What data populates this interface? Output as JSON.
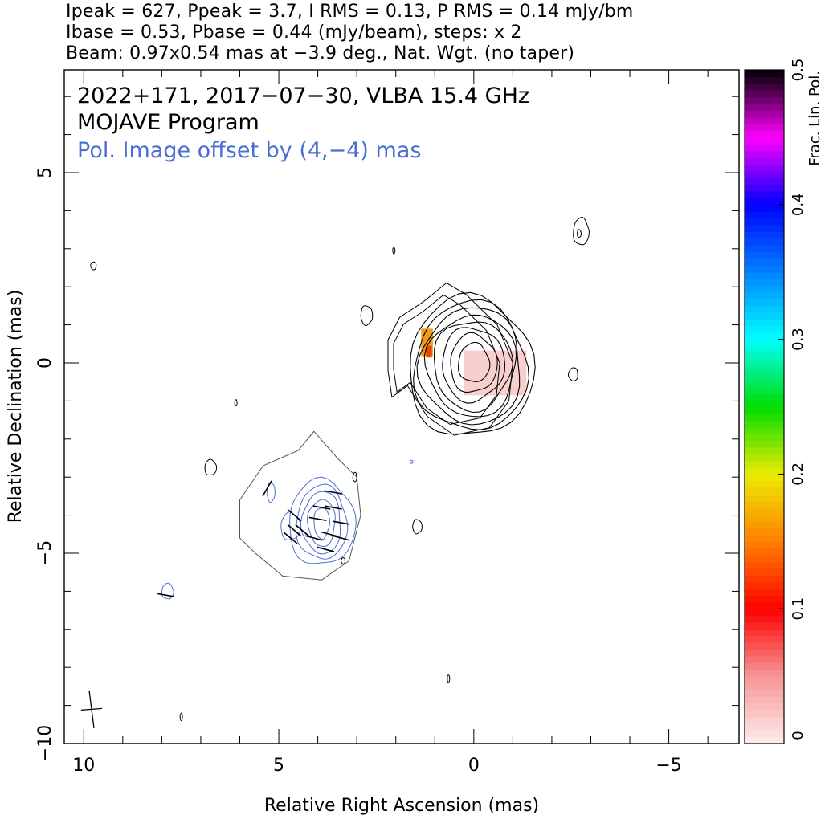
{
  "header": {
    "line1": "Ipeak = 627, Ppeak = 3.7, I RMS = 0.13, P RMS = 0.14 mJy/bm",
    "line2": "Ibase = 0.53, Pbase = 0.44 (mJy/beam), steps: x 2",
    "line3": "Beam: 0.97x0.54 mas at −3.9 deg., Nat. Wgt. (no taper)"
  },
  "chart_data": {
    "type": "contour",
    "title_lines": [
      "2022+171, 2017−07−30, VLBA 15.4 GHz",
      "MOJAVE Program"
    ],
    "annotation": "Pol. Image offset by (4,−4) mas",
    "xlabel": "Relative Right Ascension (mas)",
    "ylabel": "Relative Declination (mas)",
    "xlim": [
      10.5,
      -6.8
    ],
    "ylim": [
      -10,
      7.7
    ],
    "x_ticks": [
      10,
      5,
      0,
      -5
    ],
    "x_tick_labels": [
      "10",
      "5",
      "0",
      "−5"
    ],
    "y_ticks": [
      5,
      0,
      -5,
      -10
    ],
    "y_tick_labels": [
      "5",
      "0",
      "−5",
      "−10"
    ],
    "intensity_peak": [
      0,
      0
    ],
    "intensity_contour_radii": [
      [
        0.4,
        0.5
      ],
      [
        0.6,
        0.75
      ],
      [
        0.8,
        0.95
      ],
      [
        1.0,
        1.15
      ],
      [
        1.15,
        1.3
      ],
      [
        1.3,
        1.5
      ],
      [
        1.45,
        1.65
      ],
      [
        1.6,
        1.8
      ]
    ],
    "intensity_outer_contour": [
      [
        2.3,
        0.6
      ],
      [
        2.0,
        1.2
      ],
      [
        1.4,
        1.6
      ],
      [
        0.8,
        2.1
      ],
      [
        0.3,
        1.8
      ],
      [
        -0.5,
        1.0
      ],
      [
        -0.9,
        0.0
      ],
      [
        -0.8,
        -1.0
      ],
      [
        -0.3,
        -1.7
      ],
      [
        0.6,
        -1.9
      ],
      [
        1.3,
        -1.4
      ],
      [
        1.8,
        -0.6
      ],
      [
        2.2,
        -0.9
      ],
      [
        2.3,
        -0.2
      ]
    ],
    "pol_offset": [
      4,
      -4
    ],
    "pol_contour_center": [
      3.9,
      -4.2
    ],
    "pol_contour_radii": [
      [
        0.2,
        0.4
      ],
      [
        0.35,
        0.6
      ],
      [
        0.5,
        0.8
      ],
      [
        0.65,
        0.95
      ],
      [
        0.85,
        1.1
      ]
    ],
    "pol_outer_intensity": [
      [
        6.0,
        -3.6
      ],
      [
        5.4,
        -2.7
      ],
      [
        4.5,
        -2.3
      ],
      [
        4.1,
        -1.8
      ],
      [
        3.5,
        -2.5
      ],
      [
        3.0,
        -3.0
      ],
      [
        2.9,
        -4.0
      ],
      [
        3.2,
        -5.2
      ],
      [
        3.9,
        -5.7
      ],
      [
        4.9,
        -5.6
      ],
      [
        5.6,
        -5.0
      ],
      [
        6.0,
        -4.6
      ]
    ],
    "pol_vectors": [
      {
        "x": 3.6,
        "y": -3.4,
        "angle": 10
      },
      {
        "x": 3.9,
        "y": -3.8,
        "angle": 10
      },
      {
        "x": 3.6,
        "y": -3.8,
        "angle": 10
      },
      {
        "x": 3.4,
        "y": -4.2,
        "angle": 10
      },
      {
        "x": 4.0,
        "y": -4.1,
        "angle": 10
      },
      {
        "x": 3.7,
        "y": -4.5,
        "angle": 15
      },
      {
        "x": 3.4,
        "y": -4.6,
        "angle": 15
      },
      {
        "x": 4.1,
        "y": -4.6,
        "angle": 15
      },
      {
        "x": 3.8,
        "y": -4.9,
        "angle": 15
      },
      {
        "x": 5.3,
        "y": -3.3,
        "angle": -60
      },
      {
        "x": 4.6,
        "y": -4.0,
        "angle": 40
      },
      {
        "x": 4.6,
        "y": -4.4,
        "angle": 40
      },
      {
        "x": 4.7,
        "y": -4.6,
        "angle": 40
      },
      {
        "x": 4.4,
        "y": -4.4,
        "angle": 40
      },
      {
        "x": 7.9,
        "y": -6.1,
        "angle": 10
      }
    ],
    "small_blobs": [
      {
        "x": -2.75,
        "y": 3.45,
        "rx": 0.2,
        "ry": 0.35
      },
      {
        "x": -2.7,
        "y": 3.4,
        "rx": 0.05,
        "ry": 0.1
      },
      {
        "x": 2.75,
        "y": 1.25,
        "rx": 0.15,
        "ry": 0.25
      },
      {
        "x": 2.05,
        "y": 2.95,
        "rx": 0.03,
        "ry": 0.08
      },
      {
        "x": 9.75,
        "y": 2.55,
        "rx": 0.07,
        "ry": 0.1
      },
      {
        "x": -2.55,
        "y": -0.3,
        "rx": 0.12,
        "ry": 0.17
      },
      {
        "x": 6.1,
        "y": -1.05,
        "rx": 0.03,
        "ry": 0.08
      },
      {
        "x": 6.75,
        "y": -2.75,
        "rx": 0.15,
        "ry": 0.2
      },
      {
        "x": 1.45,
        "y": -4.3,
        "rx": 0.12,
        "ry": 0.18
      },
      {
        "x": 0.65,
        "y": -8.3,
        "rx": 0.03,
        "ry": 0.1
      },
      {
        "x": 7.5,
        "y": -9.3,
        "rx": 0.03,
        "ry": 0.1
      },
      {
        "x": 3.35,
        "y": -5.2,
        "rx": 0.05,
        "ry": 0.08
      },
      {
        "x": 3.05,
        "y": -3.0,
        "rx": 0.05,
        "ry": 0.12
      }
    ],
    "pol_blobs": [
      {
        "x": 7.85,
        "y": -6.0,
        "rx": 0.15,
        "ry": 0.2
      },
      {
        "x": 1.6,
        "y": -2.6,
        "rx": 0.04,
        "ry": 0.04
      }
    ],
    "frac_pol_patches": [
      {
        "x": -0.55,
        "y": -0.25,
        "w": 1.6,
        "h": 1.15,
        "color": "#f7c7c7"
      },
      {
        "x": 1.2,
        "y": 0.55,
        "w": 0.3,
        "h": 0.7,
        "color": "#f39a1b"
      },
      {
        "x": 1.15,
        "y": 0.3,
        "w": 0.15,
        "h": 0.3,
        "color": "#e04a00"
      }
    ],
    "beam": {
      "x": 9.8,
      "y": -9.1,
      "major": 0.97,
      "minor": 0.54,
      "pa": -3.9
    },
    "colorbar": {
      "label": "Frac. Lin. Pol.",
      "range": [
        0,
        0.5
      ],
      "ticks": [
        0,
        0.1,
        0.2,
        0.3,
        0.4,
        0.5
      ],
      "tick_labels": [
        "0",
        "0.1",
        "0.2",
        "0.3",
        "0.4",
        "0.5"
      ]
    },
    "colors": {
      "intensity_contour": "#000000",
      "pol_contour": "#4a6ed6",
      "annotation": "#4a6ed6"
    }
  }
}
